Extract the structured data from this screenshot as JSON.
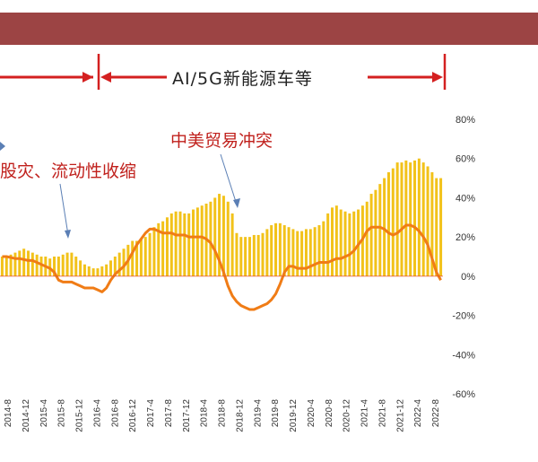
{
  "header": {
    "banner_color": "#9c4444"
  },
  "era_label": "AI/5G新能源车等",
  "annotations": {
    "trade_war": "中美贸易冲突",
    "crash": "股灾、流动性收缩"
  },
  "colors": {
    "bars": "#f2c21a",
    "line": "#f07c16",
    "annotation": "#c0201c",
    "axis": "#e05030"
  },
  "chart_data": {
    "type": "bar",
    "title": "",
    "x_tick_labels": [
      "2014-8",
      "2014-12",
      "2015-4",
      "2015-8",
      "2015-12",
      "2016-4",
      "2016-8",
      "2016-12",
      "2017-4",
      "2017-8",
      "2017-12",
      "2018-4",
      "2018-8",
      "2018-12",
      "2019-4",
      "2019-8",
      "2019-12",
      "2020-4",
      "2020-8",
      "2020-12",
      "2021-4",
      "2021-8",
      "2021-12",
      "2022-4",
      "2022-8"
    ],
    "y_axis": {
      "ticks": [
        "80%",
        "60%",
        "40%",
        "20%",
        "0%",
        "-20%",
        "-40%",
        "-60%"
      ],
      "ylim": [
        -60,
        80
      ],
      "unit": "%"
    },
    "series": [
      {
        "type": "bar",
        "values": [
          10,
          10,
          11,
          12,
          13,
          14,
          13,
          12,
          11,
          10,
          10,
          9,
          10,
          10,
          11,
          12,
          12,
          10,
          8,
          6,
          5,
          4,
          4,
          5,
          6,
          8,
          10,
          12,
          14,
          16,
          18,
          18,
          19,
          20,
          22,
          25,
          27,
          28,
          30,
          32,
          33,
          33,
          32,
          32,
          34,
          35,
          36,
          37,
          38,
          40,
          42,
          41,
          38,
          32,
          22,
          20,
          20,
          20,
          21,
          21,
          22,
          24,
          26,
          27,
          27,
          26,
          25,
          24,
          23,
          23,
          24,
          24,
          25,
          26,
          28,
          32,
          35,
          36,
          34,
          33,
          32,
          33,
          34,
          36,
          38,
          42,
          44,
          47,
          50,
          53,
          55,
          58,
          58,
          59,
          58,
          59,
          60,
          58,
          56,
          53,
          50,
          50
        ]
      },
      {
        "type": "line",
        "values": [
          10,
          10,
          9.5,
          9,
          9,
          8.5,
          8,
          8,
          7,
          6,
          5,
          4,
          2,
          -2,
          -3,
          -3,
          -3,
          -4,
          -5,
          -6,
          -6,
          -6,
          -7,
          -8,
          -6,
          -2,
          1,
          3,
          5,
          8,
          12,
          16,
          19,
          22,
          24,
          24,
          23,
          22,
          22,
          22,
          21,
          21,
          21,
          20,
          20,
          20,
          20,
          19,
          17,
          13,
          8,
          2,
          -5,
          -10,
          -13,
          -15,
          -16,
          -17,
          -17,
          -16,
          -15,
          -14,
          -12,
          -9,
          -4,
          2,
          5,
          5,
          4,
          4,
          4,
          5,
          6,
          7,
          7,
          7,
          8,
          9,
          9,
          10,
          11,
          13,
          16,
          19,
          23,
          25,
          25,
          25,
          24,
          22,
          21,
          22,
          24,
          26,
          26,
          25,
          23,
          20,
          16,
          9,
          2,
          -2
        ]
      }
    ]
  }
}
